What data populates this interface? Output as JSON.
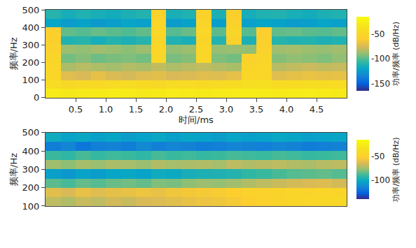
{
  "chart_data": [
    {
      "type": "heatmap",
      "x_label": "时间/ms",
      "y_label": "频率/Hz",
      "x": [
        0.125,
        0.375,
        0.625,
        0.875,
        1.125,
        1.375,
        1.625,
        1.875,
        2.125,
        2.375,
        2.625,
        2.875,
        3.125,
        3.375,
        3.625,
        3.875,
        4.125,
        4.375,
        4.625,
        4.875
      ],
      "y": [
        25,
        75,
        125,
        175,
        225,
        275,
        325,
        375,
        425,
        475
      ],
      "z": [
        [
          -30,
          -32,
          -31,
          -30,
          -28,
          -30,
          -32,
          -31,
          -29,
          -30,
          -31,
          -30,
          -29,
          -28,
          -30,
          -31,
          -30,
          -29,
          -30,
          -31
        ],
        [
          -45,
          -48,
          -46,
          -47,
          -45,
          -44,
          -46,
          -48,
          -45,
          -44,
          -46,
          -45,
          -44,
          -40,
          -40,
          -44,
          -43,
          -42,
          -44,
          -43
        ],
        [
          -50,
          -72,
          -75,
          -70,
          -74,
          -76,
          -73,
          -71,
          -75,
          -74,
          -72,
          -73,
          -70,
          -50,
          -50,
          -72,
          -70,
          -68,
          -70,
          -69
        ],
        [
          -50,
          -85,
          -82,
          -84,
          -86,
          -83,
          -85,
          -80,
          -84,
          -82,
          -80,
          -83,
          -85,
          -52,
          -50,
          -82,
          -80,
          -78,
          -80,
          -79
        ],
        [
          -52,
          -95,
          -92,
          -96,
          -94,
          -93,
          -95,
          -50,
          -94,
          -92,
          -50,
          -93,
          -95,
          -55,
          -52,
          -92,
          -90,
          -91,
          -93,
          -90
        ],
        [
          -55,
          -88,
          -90,
          -87,
          -89,
          -91,
          -88,
          -50,
          -90,
          -88,
          -50,
          -89,
          -88,
          -90,
          -55,
          -87,
          -86,
          -88,
          -89,
          -87
        ],
        [
          -58,
          -112,
          -110,
          -115,
          -111,
          -113,
          -110,
          -52,
          -112,
          -114,
          -52,
          -111,
          -55,
          -113,
          -58,
          -110,
          -112,
          -111,
          -113,
          -112
        ],
        [
          -60,
          -98,
          -100,
          -97,
          -99,
          -101,
          -98,
          -50,
          -100,
          -97,
          -50,
          -99,
          -52,
          -100,
          -60,
          -98,
          -97,
          -99,
          -100,
          -98
        ],
        [
          -120,
          -125,
          -122,
          -126,
          -124,
          -121,
          -123,
          -52,
          -125,
          -122,
          -52,
          -124,
          -55,
          -123,
          -120,
          -122,
          -125,
          -124,
          -121,
          -123
        ],
        [
          -110,
          -115,
          -112,
          -114,
          -116,
          -113,
          -111,
          -55,
          -114,
          -112,
          -55,
          -113,
          -58,
          -115,
          -112,
          -111,
          -114,
          -116,
          -113,
          -112
        ]
      ],
      "xlim": [
        0,
        5
      ],
      "xticks": [
        0.5,
        {
          "value": 1,
          "label": "1.0"
        },
        1.5,
        {
          "value": 2,
          "label": "2.0"
        },
        2.5,
        {
          "value": 3,
          "label": "3.0"
        },
        3.5,
        {
          "value": 4,
          "label": "4.0"
        },
        4.5
      ],
      "ylim": [
        0,
        500
      ],
      "yticks": [
        0,
        100,
        200,
        300,
        400,
        500
      ],
      "colorbar_title": "功率/频率 (dB/Hz)",
      "colorbar_range": [
        -165,
        -15
      ],
      "colorbar_ticks": [
        -150,
        -100,
        -50
      ]
    },
    {
      "type": "heatmap",
      "y_label": "频率/Hz",
      "tick_labels": "y",
      "x": [
        0.125,
        0.375,
        0.625,
        0.875,
        1.125,
        1.375,
        1.625,
        1.875,
        2.125,
        2.375,
        2.625,
        2.875,
        3.125,
        3.375,
        3.625,
        3.875,
        4.125,
        4.375,
        4.625,
        4.875
      ],
      "y": [
        125,
        175,
        225,
        275,
        325,
        375,
        425,
        475
      ],
      "z": [
        [
          -70,
          -72,
          -68,
          -70,
          -66,
          -68,
          -65,
          -64,
          -62,
          -60,
          -58,
          -57,
          -55,
          -52,
          -50,
          -48,
          -46,
          -45,
          -44,
          -43
        ],
        [
          -62,
          -65,
          -60,
          -63,
          -61,
          -60,
          -58,
          -60,
          -57,
          -56,
          -55,
          -54,
          -52,
          -50,
          -49,
          -48,
          -46,
          -47,
          -45,
          -46
        ],
        [
          -85,
          -88,
          -84,
          -86,
          -83,
          -82,
          -84,
          -80,
          -81,
          -78,
          -76,
          -77,
          -75,
          -72,
          -70,
          -68,
          -66,
          -65,
          -64,
          -66
        ],
        [
          -105,
          -108,
          -104,
          -106,
          -103,
          -102,
          -104,
          -100,
          -101,
          -98,
          -97,
          -96,
          -95,
          -92,
          -90,
          -88,
          -86,
          -85,
          -84,
          -86
        ],
        [
          -75,
          -78,
          -74,
          -76,
          -73,
          -74,
          -76,
          -72,
          -74,
          -73,
          -72,
          -74,
          -70,
          -72,
          -71,
          -70,
          -72,
          -73,
          -71,
          -70
        ],
        [
          -90,
          -92,
          -88,
          -91,
          -89,
          -90,
          -92,
          -88,
          -90,
          -89,
          -91,
          -90,
          -88,
          -89,
          -90,
          -88,
          -89,
          -91,
          -90,
          -89
        ],
        [
          -118,
          -115,
          -120,
          -117,
          -116,
          -118,
          -114,
          -117,
          -115,
          -116,
          -118,
          -117,
          -115,
          -116,
          -117,
          -115,
          -116,
          -118,
          -117,
          -116
        ],
        [
          -100,
          -104,
          -102,
          -105,
          -103,
          -106,
          -104,
          -102,
          -105,
          -103,
          -104,
          -106,
          -103,
          -105,
          -104,
          -102,
          -103,
          -105,
          -104,
          -103
        ]
      ],
      "xlim": [
        0,
        5
      ],
      "ylim": [
        100,
        500
      ],
      "yticks": [
        100,
        200,
        300,
        400,
        500
      ],
      "colorbar_title": "功率/频率 (dB/Hz)",
      "colorbar_range": [
        -140,
        -15
      ],
      "colorbar_ticks": [
        -100,
        -50
      ]
    }
  ]
}
